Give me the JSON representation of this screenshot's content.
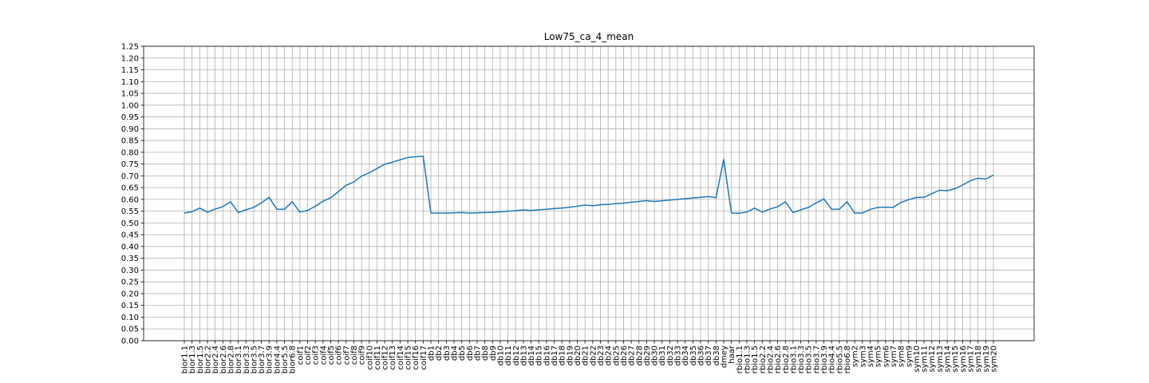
{
  "chart_data": {
    "type": "line",
    "title": "Low75_ca_4_mean",
    "xlabel": "",
    "ylabel": "",
    "ylim": [
      0,
      1.25
    ],
    "yticks": [
      "0.00",
      "0.05",
      "0.10",
      "0.15",
      "0.20",
      "0.25",
      "0.30",
      "0.35",
      "0.40",
      "0.45",
      "0.50",
      "0.55",
      "0.60",
      "0.65",
      "0.70",
      "0.75",
      "0.80",
      "0.85",
      "0.90",
      "0.95",
      "1.00",
      "1.05",
      "1.10",
      "1.15",
      "1.20",
      "1.25"
    ],
    "grid": true,
    "line_color": "#1f77b4",
    "categories": [
      "bior1.1",
      "bior1.3",
      "bior1.5",
      "bior2.2",
      "bior2.4",
      "bior2.6",
      "bior2.8",
      "bior3.1",
      "bior3.3",
      "bior3.5",
      "bior3.7",
      "bior3.9",
      "bior4.4",
      "bior5.5",
      "bior6.8",
      "coif1",
      "coif2",
      "coif3",
      "coif4",
      "coif5",
      "coif6",
      "coif7",
      "coif8",
      "coif9",
      "coif10",
      "coif11",
      "coif12",
      "coif13",
      "coif14",
      "coif15",
      "coif16",
      "coif17",
      "db1",
      "db2",
      "db3",
      "db4",
      "db5",
      "db6",
      "db7",
      "db8",
      "db9",
      "db10",
      "db11",
      "db12",
      "db13",
      "db14",
      "db15",
      "db16",
      "db17",
      "db18",
      "db19",
      "db20",
      "db21",
      "db22",
      "db23",
      "db24",
      "db25",
      "db26",
      "db27",
      "db28",
      "db29",
      "db30",
      "db31",
      "db32",
      "db33",
      "db34",
      "db35",
      "db36",
      "db37",
      "db38",
      "dmey",
      "haar",
      "rbio1.1",
      "rbio1.3",
      "rbio1.5",
      "rbio2.2",
      "rbio2.4",
      "rbio2.6",
      "rbio2.8",
      "rbio3.1",
      "rbio3.3",
      "rbio3.5",
      "rbio3.7",
      "rbio3.9",
      "rbio4.4",
      "rbio5.5",
      "rbio6.8",
      "sym2",
      "sym3",
      "sym4",
      "sym5",
      "sym6",
      "sym7",
      "sym8",
      "sym9",
      "sym10",
      "sym11",
      "sym12",
      "sym13",
      "sym14",
      "sym15",
      "sym16",
      "sym17",
      "sym18",
      "sym19",
      "sym20"
    ],
    "values": [
      0.542,
      0.548,
      0.563,
      0.546,
      0.559,
      0.569,
      0.59,
      0.544,
      0.556,
      0.566,
      0.585,
      0.609,
      0.558,
      0.558,
      0.59,
      0.546,
      0.553,
      0.571,
      0.592,
      0.607,
      0.633,
      0.66,
      0.674,
      0.699,
      0.713,
      0.731,
      0.749,
      0.758,
      0.768,
      0.778,
      0.781,
      0.783,
      0.542,
      0.542,
      0.542,
      0.543,
      0.544,
      0.542,
      0.543,
      0.544,
      0.545,
      0.547,
      0.55,
      0.552,
      0.555,
      0.553,
      0.556,
      0.558,
      0.561,
      0.563,
      0.567,
      0.571,
      0.576,
      0.573,
      0.577,
      0.579,
      0.582,
      0.584,
      0.588,
      0.591,
      0.595,
      0.591,
      0.594,
      0.597,
      0.6,
      0.603,
      0.606,
      0.609,
      0.612,
      0.607,
      0.77,
      0.542,
      0.541,
      0.546,
      0.563,
      0.546,
      0.559,
      0.569,
      0.59,
      0.544,
      0.556,
      0.566,
      0.585,
      0.602,
      0.558,
      0.558,
      0.59,
      0.542,
      0.542,
      0.557,
      0.566,
      0.567,
      0.566,
      0.587,
      0.599,
      0.608,
      0.609,
      0.624,
      0.639,
      0.637,
      0.645,
      0.661,
      0.679,
      0.69,
      0.686,
      0.703
    ]
  }
}
